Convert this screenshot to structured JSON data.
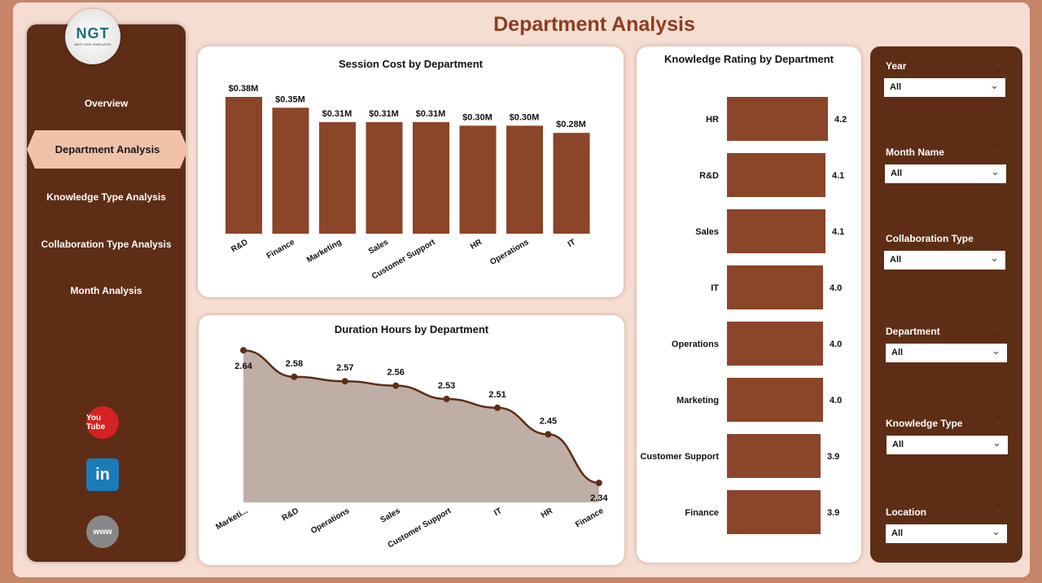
{
  "page_title": "Department Analysis",
  "logo": {
    "text": "NGT",
    "sub": "NEXT GEN TEMPLATES"
  },
  "nav": [
    {
      "label": "Overview"
    },
    {
      "label": "Department Analysis",
      "active": true
    },
    {
      "label": "Knowledge Type Analysis"
    },
    {
      "label": "Collaboration Type Analysis"
    },
    {
      "label": "Month Analysis"
    }
  ],
  "social": [
    {
      "icon": "youtube-icon",
      "label": "You Tube",
      "color": "#d62222"
    },
    {
      "icon": "linkedin-icon",
      "label": "in",
      "color": "#1a7bb9"
    },
    {
      "icon": "globe-icon",
      "label": "www",
      "color": "#888888"
    }
  ],
  "colors": {
    "bar": "#8b4528",
    "line": "#5e2d16",
    "area": "#bfaea5"
  },
  "chart_data": [
    {
      "type": "bar",
      "title": "Session Cost by Department",
      "categories": [
        "R&D",
        "Finance",
        "Marketing",
        "Sales",
        "Customer Support",
        "HR",
        "Operations",
        "IT"
      ],
      "values": [
        0.38,
        0.35,
        0.31,
        0.31,
        0.31,
        0.3,
        0.3,
        0.28
      ],
      "data_labels": [
        "$0.38M",
        "$0.35M",
        "$0.31M",
        "$0.31M",
        "$0.31M",
        "$0.30M",
        "$0.30M",
        "$0.28M"
      ]
    },
    {
      "type": "area",
      "title": "Duration Hours by Department",
      "categories": [
        "Marketi...",
        "R&D",
        "Operations",
        "Sales",
        "Customer Support",
        "IT",
        "HR",
        "Finance"
      ],
      "values": [
        2.64,
        2.58,
        2.57,
        2.56,
        2.53,
        2.51,
        2.45,
        2.34
      ]
    },
    {
      "type": "bar",
      "orientation": "horizontal",
      "title": "Knowledge Rating by Department",
      "categories": [
        "HR",
        "R&D",
        "Sales",
        "IT",
        "Operations",
        "Marketing",
        "Customer Support",
        "Finance"
      ],
      "values": [
        4.2,
        4.1,
        4.1,
        4.0,
        4.0,
        4.0,
        3.9,
        3.9
      ]
    }
  ],
  "filters": [
    {
      "label": "Year",
      "value": "All"
    },
    {
      "label": "Month Name",
      "value": "All"
    },
    {
      "label": "Collaboration Type",
      "value": "All"
    },
    {
      "label": "Department",
      "value": "All"
    },
    {
      "label": "Knowledge Type",
      "value": "All"
    },
    {
      "label": "Location",
      "value": "All"
    }
  ]
}
